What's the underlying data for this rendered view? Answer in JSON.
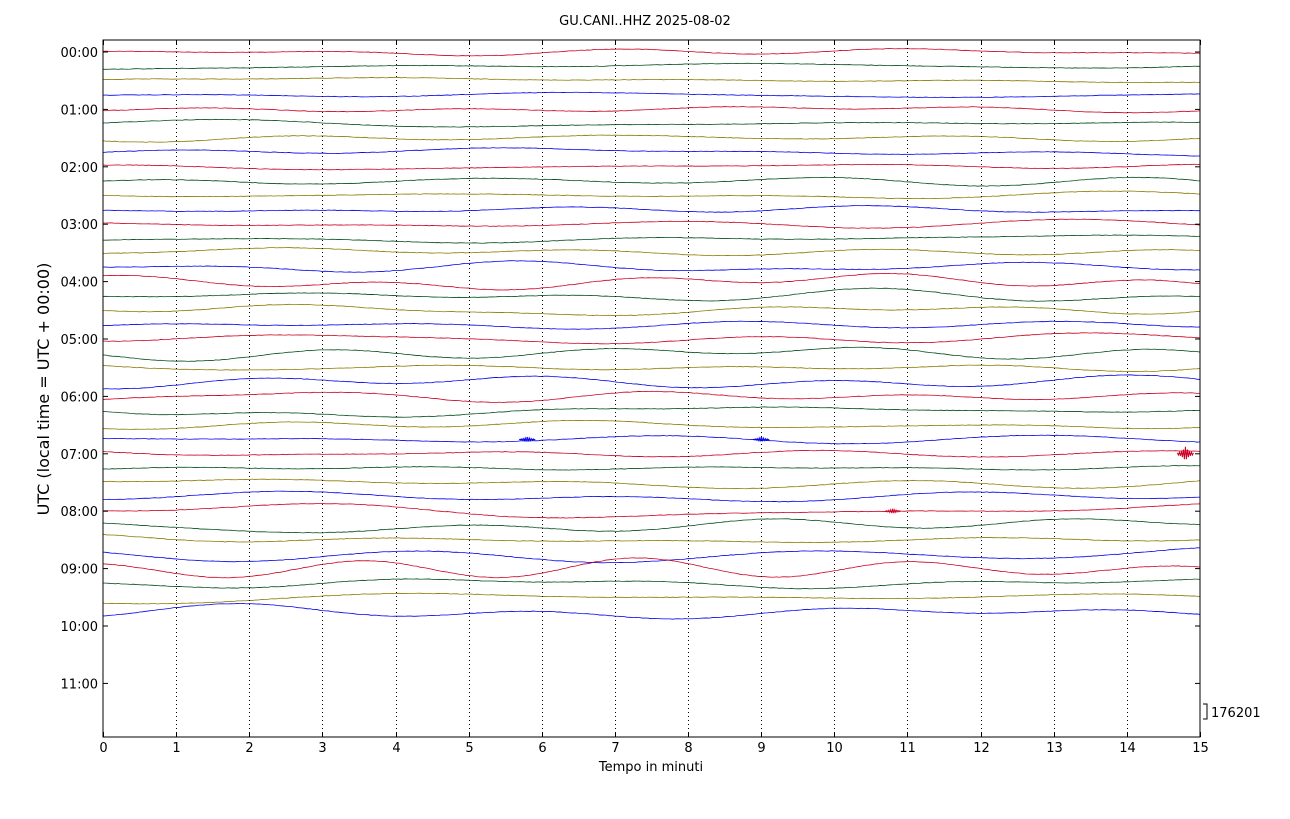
{
  "chart_data": {
    "type": "line",
    "title": "GU.CANI..HHZ 2025-08-02",
    "xlabel": "Tempo in minuti",
    "ylabel": "UTC (local time = UTC + 00:00)",
    "xlim": [
      0,
      15
    ],
    "x_ticks": [
      0,
      1,
      2,
      3,
      4,
      5,
      6,
      7,
      8,
      9,
      10,
      11,
      12,
      13,
      14,
      15
    ],
    "y_hour_labels": [
      "00:00",
      "01:00",
      "02:00",
      "03:00",
      "04:00",
      "05:00",
      "06:00",
      "07:00",
      "08:00",
      "09:00",
      "10:00",
      "11:00"
    ],
    "traces_per_hour": 4,
    "trace_count": 40,
    "colors": [
      "#cc0022",
      "#004d1a",
      "#8a7a00",
      "#0000ee"
    ],
    "grid": "vertical dotted",
    "scale_value": "176201",
    "event_markers": [
      {
        "trace": 27,
        "x": 5.8
      },
      {
        "trace": 27,
        "x": 9.0
      },
      {
        "trace": 28,
        "x": 14.8
      },
      {
        "trace": 32,
        "x": 10.8
      }
    ]
  }
}
